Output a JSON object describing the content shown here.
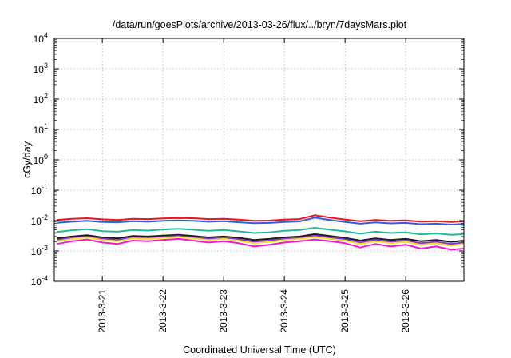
{
  "chart_data": {
    "type": "line",
    "title": "/data/run/goesPlots/archive/2013-03-26/flux/../bryn/7daysMars.plot",
    "xlabel": "Coordinated Universal Time (UTC)",
    "ylabel": "cGy/day",
    "yscale": "log",
    "ylim": [
      0.0001,
      10000
    ],
    "y_ticks": [
      {
        "base": "10",
        "exp": "-4"
      },
      {
        "base": "10",
        "exp": "-3"
      },
      {
        "base": "10",
        "exp": "-2"
      },
      {
        "base": "10",
        "exp": "-1"
      },
      {
        "base": "10",
        "exp": "0"
      },
      {
        "base": "10",
        "exp": "1"
      },
      {
        "base": "10",
        "exp": "2"
      },
      {
        "base": "10",
        "exp": "3"
      },
      {
        "base": "10",
        "exp": "4"
      }
    ],
    "x_ticks": [
      "2013-3-21",
      "2013-3-22",
      "2013-3-23",
      "2013-3-24",
      "2013-3-25",
      "2013-3-26"
    ],
    "xlim": [
      "2013-03-20 05:00",
      "2013-03-26 23:00"
    ],
    "grid": true,
    "legend": "none",
    "series": [
      {
        "color": "#e8141e",
        "x": [
          "2013-03-20 06:00",
          "2013-03-20 12:00",
          "2013-03-20 18:00",
          "2013-03-21 00:00",
          "2013-03-21 06:00",
          "2013-03-21 12:00",
          "2013-03-21 18:00",
          "2013-03-22 00:00",
          "2013-03-22 06:00",
          "2013-03-22 12:00",
          "2013-03-22 18:00",
          "2013-03-23 00:00",
          "2013-03-23 06:00",
          "2013-03-23 12:00",
          "2013-03-23 18:00",
          "2013-03-24 00:00",
          "2013-03-24 06:00",
          "2013-03-24 12:00",
          "2013-03-24 18:00",
          "2013-03-25 00:00",
          "2013-03-25 06:00",
          "2013-03-25 12:00",
          "2013-03-25 18:00",
          "2013-03-26 00:00",
          "2013-03-26 06:00",
          "2013-03-26 12:00",
          "2013-03-26 18:00",
          "2013-03-26 23:00"
        ],
        "values": [
          0.0105,
          0.0115,
          0.012,
          0.011,
          0.0105,
          0.0115,
          0.0112,
          0.0118,
          0.0122,
          0.012,
          0.0112,
          0.0115,
          0.0108,
          0.0098,
          0.01,
          0.0108,
          0.0112,
          0.015,
          0.0125,
          0.0108,
          0.0095,
          0.0105,
          0.0098,
          0.0102,
          0.0092,
          0.0095,
          0.009,
          0.0095
        ]
      },
      {
        "color": "#2f5fe0",
        "x": [
          "2013-03-20 06:00",
          "2013-03-20 12:00",
          "2013-03-20 18:00",
          "2013-03-21 00:00",
          "2013-03-21 06:00",
          "2013-03-21 12:00",
          "2013-03-21 18:00",
          "2013-03-22 00:00",
          "2013-03-22 06:00",
          "2013-03-22 12:00",
          "2013-03-22 18:00",
          "2013-03-23 00:00",
          "2013-03-23 06:00",
          "2013-03-23 12:00",
          "2013-03-23 18:00",
          "2013-03-24 00:00",
          "2013-03-24 06:00",
          "2013-03-24 12:00",
          "2013-03-24 18:00",
          "2013-03-25 00:00",
          "2013-03-25 06:00",
          "2013-03-25 12:00",
          "2013-03-25 18:00",
          "2013-03-26 00:00",
          "2013-03-26 06:00",
          "2013-03-26 12:00",
          "2013-03-26 18:00",
          "2013-03-26 23:00"
        ],
        "values": [
          0.0085,
          0.0092,
          0.0098,
          0.009,
          0.0088,
          0.0095,
          0.0092,
          0.0098,
          0.0102,
          0.0098,
          0.0092,
          0.0095,
          0.0088,
          0.0082,
          0.0084,
          0.009,
          0.0094,
          0.0125,
          0.0105,
          0.009,
          0.0079,
          0.0087,
          0.0081,
          0.0084,
          0.0076,
          0.0079,
          0.0074,
          0.0078
        ]
      },
      {
        "color": "#22b89a",
        "x": [
          "2013-03-20 06:00",
          "2013-03-20 12:00",
          "2013-03-20 18:00",
          "2013-03-21 00:00",
          "2013-03-21 06:00",
          "2013-03-21 12:00",
          "2013-03-21 18:00",
          "2013-03-22 00:00",
          "2013-03-22 06:00",
          "2013-03-22 12:00",
          "2013-03-22 18:00",
          "2013-03-23 00:00",
          "2013-03-23 06:00",
          "2013-03-23 12:00",
          "2013-03-23 18:00",
          "2013-03-24 00:00",
          "2013-03-24 06:00",
          "2013-03-24 12:00",
          "2013-03-24 18:00",
          "2013-03-25 00:00",
          "2013-03-25 06:00",
          "2013-03-25 12:00",
          "2013-03-25 18:00",
          "2013-03-26 00:00",
          "2013-03-26 06:00",
          "2013-03-26 12:00",
          "2013-03-26 18:00",
          "2013-03-26 23:00"
        ],
        "values": [
          0.0042,
          0.0048,
          0.0052,
          0.0045,
          0.0043,
          0.0049,
          0.0047,
          0.0051,
          0.0054,
          0.005,
          0.0046,
          0.0049,
          0.0044,
          0.0039,
          0.0041,
          0.0046,
          0.0049,
          0.0058,
          0.005,
          0.0044,
          0.0037,
          0.0043,
          0.0039,
          0.0041,
          0.0035,
          0.0038,
          0.0034,
          0.0036
        ]
      },
      {
        "color": "#1a1a1a",
        "x": [
          "2013-03-20 06:00",
          "2013-03-20 12:00",
          "2013-03-20 18:00",
          "2013-03-21 00:00",
          "2013-03-21 06:00",
          "2013-03-21 12:00",
          "2013-03-21 18:00",
          "2013-03-22 00:00",
          "2013-03-22 06:00",
          "2013-03-22 12:00",
          "2013-03-22 18:00",
          "2013-03-23 00:00",
          "2013-03-23 06:00",
          "2013-03-23 12:00",
          "2013-03-23 18:00",
          "2013-03-24 00:00",
          "2013-03-24 06:00",
          "2013-03-24 12:00",
          "2013-03-24 18:00",
          "2013-03-25 00:00",
          "2013-03-25 06:00",
          "2013-03-25 12:00",
          "2013-03-25 18:00",
          "2013-03-26 00:00",
          "2013-03-26 06:00",
          "2013-03-26 12:00",
          "2013-03-26 18:00",
          "2013-03-26 23:00"
        ],
        "values": [
          0.0026,
          0.003,
          0.0033,
          0.0028,
          0.0026,
          0.0031,
          0.003,
          0.0032,
          0.0034,
          0.0031,
          0.0028,
          0.003,
          0.0027,
          0.0023,
          0.0025,
          0.0028,
          0.003,
          0.0036,
          0.0031,
          0.0027,
          0.0022,
          0.0026,
          0.0023,
          0.0025,
          0.0021,
          0.0023,
          0.002,
          0.0022
        ]
      },
      {
        "color": "#8a2be2",
        "x": [
          "2013-03-20 06:00",
          "2013-03-20 12:00",
          "2013-03-20 18:00",
          "2013-03-21 00:00",
          "2013-03-21 06:00",
          "2013-03-21 12:00",
          "2013-03-21 18:00",
          "2013-03-22 00:00",
          "2013-03-22 06:00",
          "2013-03-22 12:00",
          "2013-03-22 18:00",
          "2013-03-23 00:00",
          "2013-03-23 06:00",
          "2013-03-23 12:00",
          "2013-03-23 18:00",
          "2013-03-24 00:00",
          "2013-03-24 06:00",
          "2013-03-24 12:00",
          "2013-03-24 18:00",
          "2013-03-25 00:00",
          "2013-03-25 06:00",
          "2013-03-25 12:00",
          "2013-03-25 18:00",
          "2013-03-26 00:00",
          "2013-03-26 06:00",
          "2013-03-26 12:00",
          "2013-03-26 18:00",
          "2013-03-26 23:00"
        ],
        "values": [
          0.0023,
          0.0027,
          0.003,
          0.0025,
          0.0023,
          0.0028,
          0.0027,
          0.0029,
          0.0031,
          0.0028,
          0.0025,
          0.0027,
          0.0024,
          0.002,
          0.0022,
          0.0025,
          0.0027,
          0.0032,
          0.0028,
          0.0024,
          0.0019,
          0.0023,
          0.002,
          0.0022,
          0.0018,
          0.002,
          0.0017,
          0.0019
        ]
      },
      {
        "color": "#f0e020",
        "x": [
          "2013-03-20 06:00",
          "2013-03-20 12:00",
          "2013-03-20 18:00",
          "2013-03-21 00:00",
          "2013-03-21 06:00",
          "2013-03-21 12:00",
          "2013-03-21 18:00",
          "2013-03-22 00:00",
          "2013-03-22 06:00",
          "2013-03-22 12:00",
          "2013-03-22 18:00",
          "2013-03-23 00:00",
          "2013-03-23 06:00",
          "2013-03-23 12:00",
          "2013-03-23 18:00",
          "2013-03-24 00:00",
          "2013-03-24 06:00",
          "2013-03-24 12:00",
          "2013-03-24 18:00",
          "2013-03-25 00:00",
          "2013-03-25 06:00",
          "2013-03-25 12:00",
          "2013-03-25 18:00",
          "2013-03-26 00:00",
          "2013-03-26 06:00",
          "2013-03-26 12:00",
          "2013-03-26 18:00",
          "2013-03-26 23:00"
        ],
        "values": [
          0.0021,
          0.0025,
          0.0028,
          0.0023,
          0.0021,
          0.0026,
          0.0025,
          0.0027,
          0.0029,
          0.0026,
          0.0023,
          0.0025,
          0.0022,
          0.0018,
          0.002,
          0.0023,
          0.0025,
          0.0029,
          0.0025,
          0.0022,
          0.0017,
          0.0021,
          0.0018,
          0.002,
          0.0016,
          0.0018,
          0.0015,
          0.0017
        ]
      },
      {
        "color": "#f018d8",
        "x": [
          "2013-03-20 06:00",
          "2013-03-20 12:00",
          "2013-03-20 18:00",
          "2013-03-21 00:00",
          "2013-03-21 06:00",
          "2013-03-21 12:00",
          "2013-03-21 18:00",
          "2013-03-22 00:00",
          "2013-03-22 06:00",
          "2013-03-22 12:00",
          "2013-03-22 18:00",
          "2013-03-23 00:00",
          "2013-03-23 06:00",
          "2013-03-23 12:00",
          "2013-03-23 18:00",
          "2013-03-24 00:00",
          "2013-03-24 06:00",
          "2013-03-24 12:00",
          "2013-03-24 18:00",
          "2013-03-25 00:00",
          "2013-03-25 06:00",
          "2013-03-25 12:00",
          "2013-03-25 18:00",
          "2013-03-26 00:00",
          "2013-03-26 06:00",
          "2013-03-26 12:00",
          "2013-03-26 18:00",
          "2013-03-26 23:00"
        ],
        "values": [
          0.0017,
          0.0021,
          0.0024,
          0.0019,
          0.0017,
          0.0022,
          0.0021,
          0.0023,
          0.0025,
          0.0022,
          0.0019,
          0.0021,
          0.0018,
          0.0014,
          0.0016,
          0.0019,
          0.0021,
          0.0024,
          0.0021,
          0.0018,
          0.0013,
          0.0017,
          0.0014,
          0.0016,
          0.0012,
          0.0014,
          0.0011,
          0.0012
        ]
      }
    ]
  }
}
